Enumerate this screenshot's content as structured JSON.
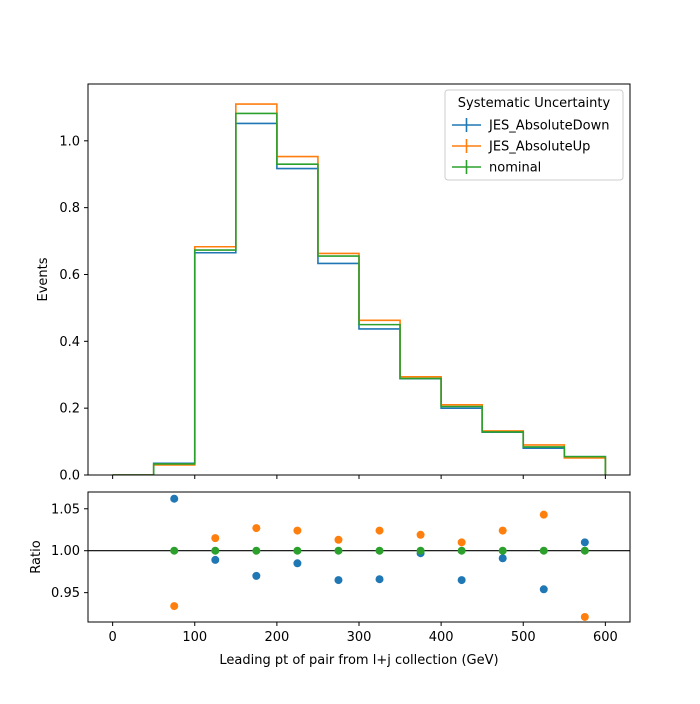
{
  "chart_data": [
    {
      "type": "line",
      "subtype": "step-histogram",
      "ylabel": "Events",
      "xlim": [
        -30,
        630
      ],
      "ylim": [
        0,
        1.17
      ],
      "bin_edges": [
        0,
        50,
        100,
        150,
        200,
        250,
        300,
        350,
        400,
        450,
        500,
        550,
        600
      ],
      "xticks": [
        0,
        100,
        200,
        300,
        400,
        500,
        600
      ],
      "yticks": [
        "0.0",
        "0.2",
        "0.4",
        "0.6",
        "0.8",
        "1.0"
      ],
      "legend": {
        "title": "Systematic Uncertainty",
        "placement": "top-right"
      },
      "series": [
        {
          "name": "JES_AbsoluteDown",
          "color": "#1f77b4",
          "values": [
            0.0,
            0.035,
            0.665,
            1.052,
            0.917,
            0.633,
            0.437,
            0.288,
            0.2,
            0.128,
            0.08,
            0.055
          ]
        },
        {
          "name": "JES_AbsoluteUp",
          "color": "#ff7f0e",
          "values": [
            0.0,
            0.03,
            0.683,
            1.11,
            0.953,
            0.663,
            0.463,
            0.294,
            0.21,
            0.132,
            0.09,
            0.051
          ]
        },
        {
          "name": "nominal",
          "color": "#2ca02c",
          "values": [
            0.0,
            0.033,
            0.673,
            1.082,
            0.93,
            0.655,
            0.45,
            0.289,
            0.205,
            0.129,
            0.084,
            0.055
          ]
        }
      ]
    },
    {
      "type": "scatter",
      "xlabel": "Leading pt of pair from l+j collection (GeV)",
      "ylabel": "Ratio",
      "xlim": [
        -30,
        630
      ],
      "ylim": [
        0.915,
        1.07
      ],
      "xticks": [
        0,
        100,
        200,
        300,
        400,
        500,
        600
      ],
      "yticks": [
        "0.95",
        "1.00",
        "1.05"
      ],
      "reference_line": 1.0,
      "x": [
        75,
        125,
        175,
        225,
        275,
        325,
        375,
        425,
        475,
        525,
        575
      ],
      "series": [
        {
          "name": "JES_AbsoluteDown",
          "color": "#1f77b4",
          "values": [
            1.062,
            0.989,
            0.97,
            0.985,
            0.965,
            0.966,
            0.997,
            0.965,
            0.991,
            0.954,
            1.01
          ]
        },
        {
          "name": "JES_AbsoluteUp",
          "color": "#ff7f0e",
          "values": [
            0.934,
            1.015,
            1.027,
            1.024,
            1.013,
            1.024,
            1.019,
            1.01,
            1.024,
            1.043,
            0.921
          ]
        },
        {
          "name": "nominal",
          "color": "#2ca02c",
          "values": [
            1.0,
            1.0,
            1.0,
            1.0,
            1.0,
            1.0,
            1.0,
            1.0,
            1.0,
            1.0,
            1.0
          ]
        }
      ]
    }
  ]
}
